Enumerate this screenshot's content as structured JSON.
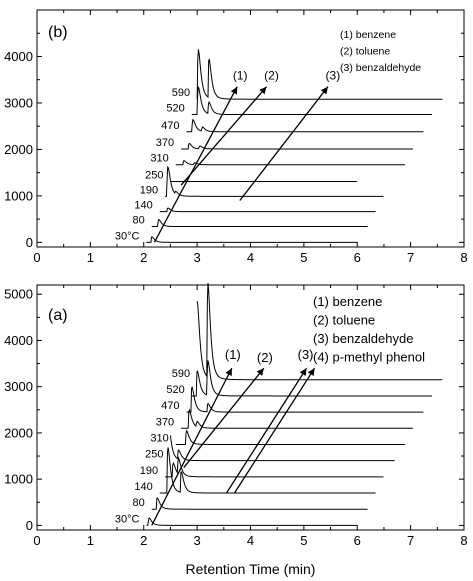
{
  "chart_data": [
    {
      "panel": "b",
      "type": "line",
      "panel_label": "(b)",
      "xlabel": "",
      "ylabel": "",
      "xlim": [
        0,
        8
      ],
      "ylim": [
        -100,
        5000
      ],
      "x_ticks": [
        0,
        1,
        2,
        3,
        4,
        5,
        6,
        7,
        8
      ],
      "y_ticks": [
        0,
        1000,
        2000,
        3000,
        4000
      ],
      "x_tick_labels": [
        "0",
        "1",
        "2",
        "3",
        "4",
        "5",
        "6",
        "7",
        "8"
      ],
      "y_tick_labels": [
        "0",
        "1000",
        "2000",
        "3000",
        "4000"
      ],
      "legend": [
        "(1) benzene",
        "(2) toluene",
        "(3) benzaldehyde"
      ],
      "series": [
        {
          "label": "30°C",
          "baseline": 0,
          "x_start": 2.05,
          "x_end": 6.0,
          "peaks": [
            {
              "x": 2.15,
              "height": 120
            }
          ]
        },
        {
          "label": "80",
          "baseline": 340,
          "x_start": 2.15,
          "x_end": 6.2,
          "peaks": [
            {
              "x": 2.28,
              "height": 150
            }
          ]
        },
        {
          "label": "140",
          "baseline": 660,
          "x_start": 2.3,
          "x_end": 6.35,
          "peaks": [
            {
              "x": 2.45,
              "height": 80
            }
          ]
        },
        {
          "label": "190",
          "baseline": 990,
          "x_start": 2.4,
          "x_end": 6.5,
          "peaks": [
            {
              "x": 2.45,
              "height": 640
            },
            {
              "x": 2.6,
              "height": 60
            }
          ]
        },
        {
          "label": "250",
          "baseline": 1310,
          "x_start": 2.5,
          "x_end": 6.0,
          "peaks": []
        },
        {
          "label": "310",
          "baseline": 1670,
          "x_start": 2.6,
          "x_end": 6.9,
          "peaks": [
            {
              "x": 2.75,
              "height": 90
            },
            {
              "x": 2.95,
              "height": 40
            }
          ]
        },
        {
          "label": "370",
          "baseline": 2010,
          "x_start": 2.7,
          "x_end": 7.05,
          "peaks": [
            {
              "x": 2.85,
              "height": 120
            },
            {
              "x": 3.05,
              "height": 60
            }
          ]
        },
        {
          "label": "470",
          "baseline": 2380,
          "x_start": 2.8,
          "x_end": 7.25,
          "peaks": [
            {
              "x": 2.92,
              "height": 260
            },
            {
              "x": 3.1,
              "height": 90
            }
          ]
        },
        {
          "label": "520",
          "baseline": 2750,
          "x_start": 2.9,
          "x_end": 7.4,
          "peaks": [
            {
              "x": 3.02,
              "height": 600
            },
            {
              "x": 3.22,
              "height": 250
            }
          ]
        },
        {
          "label": "590",
          "baseline": 3080,
          "x_start": 3.0,
          "x_end": 7.6,
          "peaks": [
            {
              "x": 3.02,
              "height": 1080
            },
            {
              "x": 3.22,
              "height": 840
            }
          ]
        }
      ],
      "guide_lines": [
        {
          "label": "(1)",
          "from": [
            2.2,
            0
          ],
          "to": [
            3.75,
            3350
          ]
        },
        {
          "label": "(2)",
          "from": [
            2.7,
            1230
          ],
          "to": [
            4.3,
            3350
          ]
        },
        {
          "label": "(3)",
          "from": [
            3.8,
            900
          ],
          "to": [
            5.45,
            3350
          ]
        }
      ]
    },
    {
      "panel": "a",
      "type": "line",
      "panel_label": "(a)",
      "xlabel": "Retention Time (min)",
      "ylabel": "",
      "xlim": [
        0,
        8
      ],
      "ylim": [
        -100,
        5200
      ],
      "x_ticks": [
        0,
        1,
        2,
        3,
        4,
        5,
        6,
        7,
        8
      ],
      "y_ticks": [
        0,
        1000,
        2000,
        3000,
        4000,
        5000
      ],
      "x_tick_labels": [
        "0",
        "1",
        "2",
        "3",
        "4",
        "5",
        "6",
        "7",
        "8"
      ],
      "y_tick_labels": [
        "0",
        "1000",
        "2000",
        "3000",
        "4000",
        "5000"
      ],
      "legend": [
        "(1) benzene",
        "(2) toluene",
        "(3) benzaldehyde",
        "(4) p-methyl phenol"
      ],
      "series": [
        {
          "label": "30°C",
          "baseline": 0,
          "x_start": 2.05,
          "x_end": 6.0,
          "peaks": [
            {
              "x": 2.1,
              "height": 160
            }
          ]
        },
        {
          "label": "80",
          "baseline": 350,
          "x_start": 2.15,
          "x_end": 6.2,
          "peaks": [
            {
              "x": 2.25,
              "height": 250
            }
          ]
        },
        {
          "label": "140",
          "baseline": 700,
          "x_start": 2.3,
          "x_end": 6.35,
          "peaks": [
            {
              "x": 2.45,
              "height": 1000
            },
            {
              "x": 2.7,
              "height": 450
            }
          ]
        },
        {
          "label": "190",
          "baseline": 1050,
          "x_start": 2.4,
          "x_end": 6.5,
          "peaks": [
            {
              "x": 2.55,
              "height": 300
            },
            {
              "x": 2.65,
              "height": 350
            }
          ]
        },
        {
          "label": "250",
          "baseline": 1400,
          "x_start": 2.5,
          "x_end": 6.7,
          "peaks": [
            {
              "x": 2.45,
              "height": 1000
            },
            {
              "x": 2.65,
              "height": 200
            }
          ]
        },
        {
          "label": "310",
          "baseline": 1750,
          "x_start": 2.6,
          "x_end": 6.9,
          "peaks": [
            {
              "x": 2.8,
              "height": 300
            }
          ]
        },
        {
          "label": "370",
          "baseline": 2100,
          "x_start": 2.7,
          "x_end": 7.05,
          "peaks": [
            {
              "x": 2.85,
              "height": 400
            },
            {
              "x": 3.0,
              "height": 120
            }
          ]
        },
        {
          "label": "470",
          "baseline": 2450,
          "x_start": 2.8,
          "x_end": 7.25,
          "peaks": [
            {
              "x": 2.9,
              "height": 550
            },
            {
              "x": 3.2,
              "height": 180
            }
          ]
        },
        {
          "label": "520",
          "baseline": 2800,
          "x_start": 2.9,
          "x_end": 7.4,
          "peaks": [
            {
              "x": 3.0,
              "height": 550
            },
            {
              "x": 3.2,
              "height": 750
            }
          ]
        },
        {
          "label": "590",
          "baseline": 3150,
          "x_start": 3.0,
          "x_end": 7.6,
          "peaks": [
            {
              "x": 3.0,
              "height": 1700
            },
            {
              "x": 3.2,
              "height": 2050
            }
          ]
        }
      ],
      "guide_lines": [
        {
          "label": "(1)",
          "from": [
            2.15,
            0
          ],
          "to": [
            3.65,
            3400
          ]
        },
        {
          "label": "(2)",
          "from": [
            2.75,
            1250
          ],
          "to": [
            4.25,
            3400
          ]
        },
        {
          "label": "(3)",
          "from": [
            3.55,
            700
          ],
          "to": [
            5.05,
            3400
          ]
        },
        {
          "label": "",
          "from": [
            3.7,
            700
          ],
          "to": [
            5.2,
            3400
          ]
        }
      ]
    }
  ]
}
